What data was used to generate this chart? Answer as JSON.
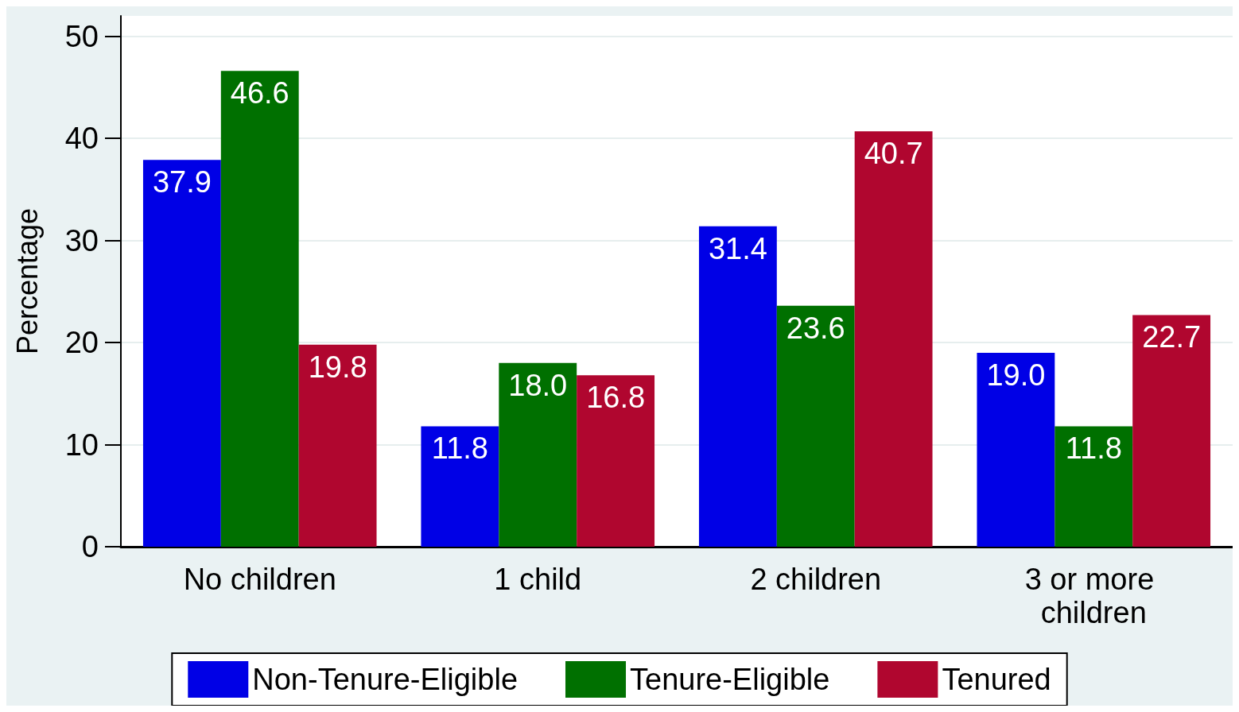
{
  "chart_data": {
    "type": "bar",
    "ylabel": "Percentage",
    "categories": [
      "No children",
      "1 child",
      "2 children",
      "3 or more children"
    ],
    "series": [
      {
        "name": "Non-Tenure-Eligible",
        "color": "#0000e6",
        "values": [
          37.9,
          11.8,
          31.4,
          19.0
        ],
        "value_labels": [
          "37.9",
          "11.8",
          "31.4",
          "19.0"
        ]
      },
      {
        "name": "Tenure-Eligible",
        "color": "#007000",
        "values": [
          46.6,
          18.0,
          23.6,
          11.8
        ],
        "value_labels": [
          "46.6",
          "18.0",
          "23.6",
          "11.8"
        ]
      },
      {
        "name": "Tenured",
        "color": "#b0062f",
        "values": [
          19.8,
          16.8,
          40.7,
          22.7
        ],
        "value_labels": [
          "19.8",
          "16.8",
          "40.7",
          "22.7"
        ]
      }
    ],
    "ylim": [
      0,
      52
    ],
    "yticks": [
      0,
      10,
      20,
      30,
      40,
      50
    ],
    "grid": "y",
    "legend": "bottom"
  }
}
